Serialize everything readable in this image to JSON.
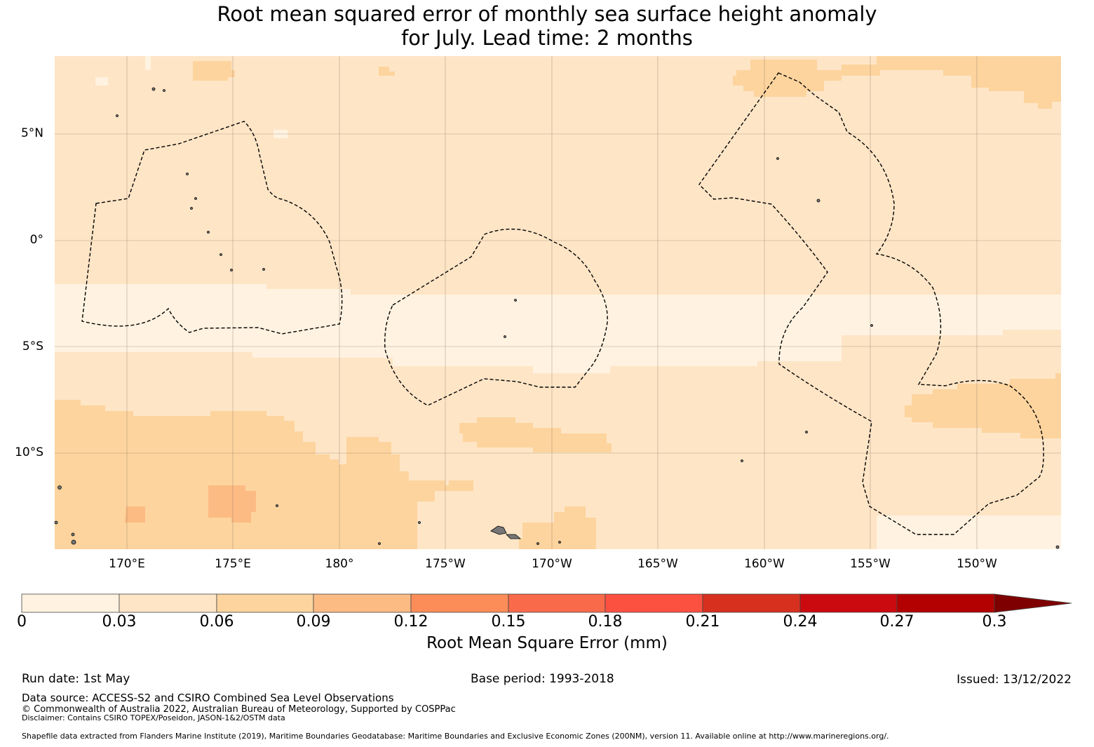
{
  "title": {
    "line1": "Root mean squared error of monthly sea surface height anomaly",
    "line2": "for July. Lead time: 2 months"
  },
  "map": {
    "lat_labels": [
      "5°N",
      "0°",
      "5°S",
      "10°S"
    ],
    "lon_labels": [
      "170°E",
      "175°E",
      "180°",
      "175°W",
      "170°W",
      "165°W",
      "160°W",
      "155°W",
      "150°W"
    ],
    "legend_colors": [
      "#fff2e0",
      "#fee5c6",
      "#fdd49e",
      "#fdbb84",
      "#fc8d59",
      "#f96a4b",
      "#fc5040",
      "#d7301f",
      "#cb0a10",
      "#b30000",
      "#7f0000"
    ]
  },
  "colorbar": {
    "ticks": [
      "0",
      "0.03",
      "0.06",
      "0.09",
      "0.12",
      "0.15",
      "0.18",
      "0.21",
      "0.24",
      "0.27",
      "0.3"
    ],
    "label": "Root Mean Square Error (mm)"
  },
  "footer": {
    "run_date": "Run date: 1st May",
    "base_period": "Base period: 1993-2018",
    "issued": "Issued: 13/12/2022",
    "data_source": "Data source: ACCESS-S2 and CSIRO Combined Sea Level Observations",
    "copyright": "© Commonwealth of Australia 2022, Australian Bureau of Meteorology, Supported by COSPPac",
    "disclaimer": "Disclaimer: Contains CSIRO TOPEX/Poseidon, JASON-1&2/OSTM data",
    "shapefile": "Shapefile data extracted from Flanders Marine Institute (2019), Maritime Boundaries Geodatabase: Maritime Boundaries and Exclusive Economic Zones (200NM), version 11. Available online at http://www.marineregions.org/."
  }
}
